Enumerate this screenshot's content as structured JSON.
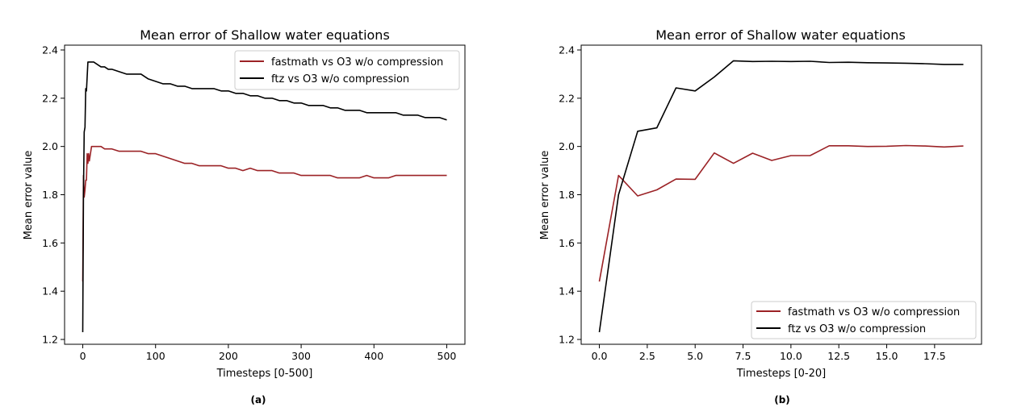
{
  "chart_data": [
    {
      "type": "line",
      "title": "Mean error of Shallow water equations",
      "xlabel": "Timesteps [0-500]",
      "ylabel": "Mean error value",
      "caption": "(a)",
      "xlim": [
        -25,
        525
      ],
      "ylim": [
        1.18,
        2.42
      ],
      "xticks": [
        0,
        100,
        200,
        300,
        400,
        500
      ],
      "xtick_labels": [
        "0",
        "100",
        "200",
        "300",
        "400",
        "500"
      ],
      "yticks": [
        1.2,
        1.4,
        1.6,
        1.8,
        2.0,
        2.2,
        2.4
      ],
      "ytick_labels": [
        "1.2",
        "1.4",
        "1.6",
        "1.8",
        "2.0",
        "2.2",
        "2.4"
      ],
      "grid": false,
      "legend_position": "top-right",
      "series": [
        {
          "name": "fastmath vs O3 w/o compression",
          "color": "#9b2226",
          "x": [
            0,
            1,
            2,
            3,
            4,
            5,
            6,
            7,
            8,
            9,
            10,
            12,
            15,
            20,
            25,
            30,
            35,
            40,
            50,
            60,
            70,
            80,
            90,
            100,
            110,
            120,
            130,
            140,
            150,
            160,
            170,
            180,
            190,
            200,
            210,
            220,
            230,
            240,
            250,
            260,
            270,
            280,
            290,
            300,
            310,
            320,
            330,
            340,
            350,
            360,
            370,
            380,
            390,
            400,
            410,
            420,
            430,
            440,
            450,
            460,
            470,
            480,
            490,
            500
          ],
          "y": [
            1.44,
            1.88,
            1.79,
            1.82,
            1.86,
            1.86,
            1.97,
            1.93,
            1.97,
            1.94,
            1.96,
            2.0,
            2.0,
            2.0,
            2.0,
            1.99,
            1.99,
            1.99,
            1.98,
            1.98,
            1.98,
            1.98,
            1.97,
            1.97,
            1.96,
            1.95,
            1.94,
            1.93,
            1.93,
            1.92,
            1.92,
            1.92,
            1.92,
            1.91,
            1.91,
            1.9,
            1.91,
            1.9,
            1.9,
            1.9,
            1.89,
            1.89,
            1.89,
            1.88,
            1.88,
            1.88,
            1.88,
            1.88,
            1.87,
            1.87,
            1.87,
            1.87,
            1.88,
            1.87,
            1.87,
            1.87,
            1.88,
            1.88,
            1.88,
            1.88,
            1.88,
            1.88,
            1.88,
            1.88
          ]
        },
        {
          "name": "ftz vs O3 w/o compression",
          "color": "#000000",
          "x": [
            0,
            1,
            2,
            3,
            4,
            5,
            6,
            7,
            8,
            9,
            10,
            12,
            15,
            20,
            25,
            30,
            35,
            40,
            50,
            60,
            70,
            80,
            90,
            100,
            110,
            120,
            130,
            140,
            150,
            160,
            170,
            180,
            190,
            200,
            210,
            220,
            230,
            240,
            250,
            260,
            270,
            280,
            290,
            300,
            310,
            320,
            330,
            340,
            350,
            360,
            370,
            380,
            390,
            400,
            410,
            420,
            430,
            440,
            450,
            460,
            470,
            480,
            490,
            500
          ],
          "y": [
            1.23,
            1.8,
            2.06,
            2.08,
            2.24,
            2.23,
            2.29,
            2.35,
            2.35,
            2.35,
            2.35,
            2.35,
            2.35,
            2.34,
            2.33,
            2.33,
            2.32,
            2.32,
            2.31,
            2.3,
            2.3,
            2.3,
            2.28,
            2.27,
            2.26,
            2.26,
            2.25,
            2.25,
            2.24,
            2.24,
            2.24,
            2.24,
            2.23,
            2.23,
            2.22,
            2.22,
            2.21,
            2.21,
            2.2,
            2.2,
            2.19,
            2.19,
            2.18,
            2.18,
            2.17,
            2.17,
            2.17,
            2.16,
            2.16,
            2.15,
            2.15,
            2.15,
            2.14,
            2.14,
            2.14,
            2.14,
            2.14,
            2.13,
            2.13,
            2.13,
            2.12,
            2.12,
            2.12,
            2.11
          ]
        }
      ]
    },
    {
      "type": "line",
      "title": "Mean error of Shallow water equations",
      "xlabel": "Timesteps [0-20]",
      "ylabel": "Mean error value",
      "caption": "(b)",
      "xlim": [
        -0.95,
        19.95
      ],
      "ylim": [
        1.18,
        2.42
      ],
      "xticks": [
        0.0,
        2.5,
        5.0,
        7.5,
        10.0,
        12.5,
        15.0,
        17.5
      ],
      "xtick_labels": [
        "0.0",
        "2.5",
        "5.0",
        "7.5",
        "10.0",
        "12.5",
        "15.0",
        "17.5"
      ],
      "yticks": [
        1.2,
        1.4,
        1.6,
        1.8,
        2.0,
        2.2,
        2.4
      ],
      "ytick_labels": [
        "1.2",
        "1.4",
        "1.6",
        "1.8",
        "2.0",
        "2.2",
        "2.4"
      ],
      "grid": false,
      "legend_position": "bottom-right",
      "series": [
        {
          "name": "fastmath vs O3 w/o compression",
          "color": "#9b2226",
          "x": [
            0,
            1,
            2,
            3,
            4,
            5,
            6,
            7,
            8,
            9,
            10,
            11,
            12,
            13,
            14,
            15,
            16,
            17,
            18,
            19
          ],
          "y": [
            1.44,
            1.88,
            1.795,
            1.82,
            1.865,
            1.864,
            1.973,
            1.93,
            1.972,
            1.942,
            1.962,
            1.962,
            2.003,
            2.003,
            2.0,
            2.001,
            2.004,
            2.002,
            1.998,
            2.002
          ]
        },
        {
          "name": "ftz vs O3 w/o compression",
          "color": "#000000",
          "x": [
            0,
            1,
            2,
            3,
            4,
            5,
            6,
            7,
            8,
            9,
            10,
            11,
            12,
            13,
            14,
            15,
            16,
            17,
            18,
            19
          ],
          "y": [
            1.23,
            1.8,
            2.063,
            2.077,
            2.243,
            2.23,
            2.288,
            2.355,
            2.352,
            2.353,
            2.352,
            2.353,
            2.348,
            2.349,
            2.347,
            2.346,
            2.345,
            2.343,
            2.34,
            2.34
          ]
        }
      ]
    }
  ]
}
